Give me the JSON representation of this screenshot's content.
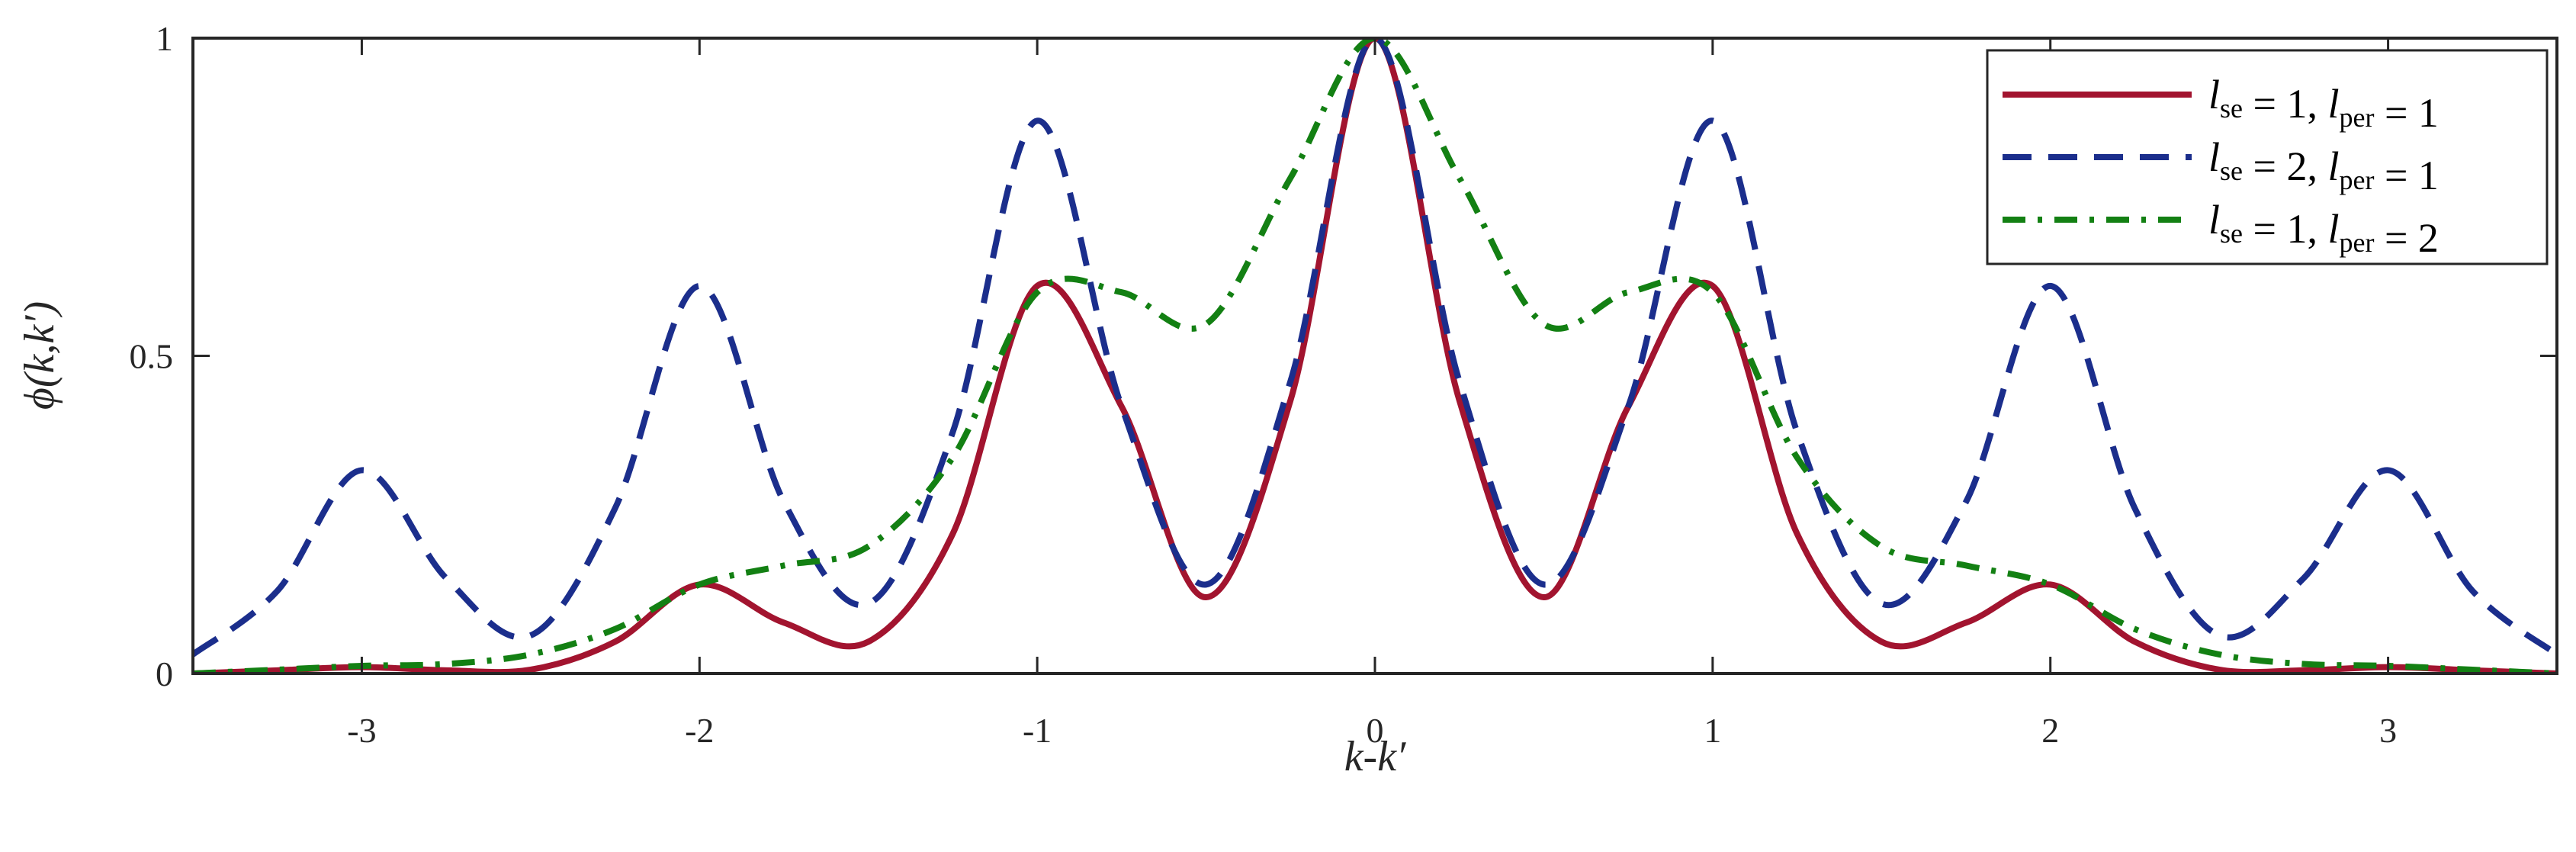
{
  "chart_data": {
    "type": "line",
    "title": "",
    "xlabel": "k-k′",
    "ylabel": "ϕ(k,k′)",
    "xlim": [
      -3.5,
      3.5
    ],
    "ylim": [
      0,
      1
    ],
    "xticks": [
      -3,
      -2,
      -1,
      0,
      1,
      2,
      3
    ],
    "xtick_labels": [
      "-3",
      "-2",
      "-1",
      "0",
      "1",
      "2",
      "3"
    ],
    "yticks": [
      0,
      0.5,
      1
    ],
    "ytick_labels": [
      "0",
      "0.5",
      "1"
    ],
    "grid": false,
    "legend_position": "top-right",
    "series": [
      {
        "name": "l_se = 1, l_per = 1",
        "legend_main_1": "l",
        "legend_sub_1": "se",
        "legend_mid": " = 1, ",
        "legend_main_2": "l",
        "legend_sub_2": "per",
        "legend_end": " = 1",
        "color": "#A2142F",
        "style": "solid",
        "x": [
          -3.5,
          -3.25,
          -3.0,
          -2.75,
          -2.5,
          -2.25,
          -2.0,
          -1.75,
          -1.5,
          -1.25,
          -1.0,
          -0.75,
          -0.5,
          -0.25,
          0.0,
          0.25,
          0.5,
          0.75,
          1.0,
          1.25,
          1.5,
          1.75,
          2.0,
          2.25,
          2.5,
          2.75,
          3.0,
          3.25,
          3.5
        ],
        "y": [
          0.0,
          0.005,
          0.01,
          0.005,
          0.006,
          0.05,
          0.14,
          0.08,
          0.05,
          0.22,
          0.61,
          0.42,
          0.12,
          0.43,
          1.0,
          0.43,
          0.12,
          0.42,
          0.61,
          0.22,
          0.05,
          0.08,
          0.14,
          0.05,
          0.006,
          0.005,
          0.01,
          0.005,
          0.0
        ]
      },
      {
        "name": "l_se = 2, l_per = 1",
        "legend_main_1": "l",
        "legend_sub_1": "se",
        "legend_mid": " = 2, ",
        "legend_main_2": "l",
        "legend_sub_2": "per",
        "legend_end": " = 1",
        "color": "#1B2E8C",
        "style": "dashed",
        "x": [
          -3.5,
          -3.25,
          -3.0,
          -2.75,
          -2.5,
          -2.25,
          -2.0,
          -1.75,
          -1.5,
          -1.25,
          -1.0,
          -0.75,
          -0.5,
          -0.25,
          0.0,
          0.25,
          0.5,
          0.75,
          1.0,
          1.25,
          1.5,
          1.75,
          2.0,
          2.25,
          2.5,
          2.75,
          3.0,
          3.25,
          3.5
        ],
        "y": [
          0.03,
          0.13,
          0.32,
          0.15,
          0.06,
          0.26,
          0.61,
          0.27,
          0.11,
          0.38,
          0.87,
          0.42,
          0.14,
          0.46,
          1.0,
          0.46,
          0.14,
          0.42,
          0.87,
          0.38,
          0.11,
          0.27,
          0.61,
          0.26,
          0.06,
          0.15,
          0.32,
          0.13,
          0.03
        ]
      },
      {
        "name": "l_se = 1, l_per = 2",
        "legend_main_1": "l",
        "legend_sub_1": "se",
        "legend_mid": " = 1, ",
        "legend_main_2": "l",
        "legend_sub_2": "per",
        "legend_end": " = 2",
        "color": "#138013",
        "style": "dashdot",
        "x": [
          -3.5,
          -3.25,
          -3.0,
          -2.75,
          -2.5,
          -2.25,
          -2.0,
          -1.75,
          -1.5,
          -1.25,
          -1.0,
          -0.75,
          -0.5,
          -0.25,
          0.0,
          0.25,
          0.5,
          0.75,
          1.0,
          1.25,
          1.5,
          1.75,
          2.0,
          2.25,
          2.5,
          2.75,
          3.0,
          3.25,
          3.5
        ],
        "y": [
          0.0,
          0.006,
          0.012,
          0.015,
          0.03,
          0.07,
          0.14,
          0.17,
          0.2,
          0.34,
          0.6,
          0.6,
          0.55,
          0.78,
          1.0,
          0.78,
          0.55,
          0.6,
          0.6,
          0.34,
          0.2,
          0.17,
          0.14,
          0.07,
          0.03,
          0.015,
          0.012,
          0.006,
          0.0
        ]
      }
    ]
  }
}
